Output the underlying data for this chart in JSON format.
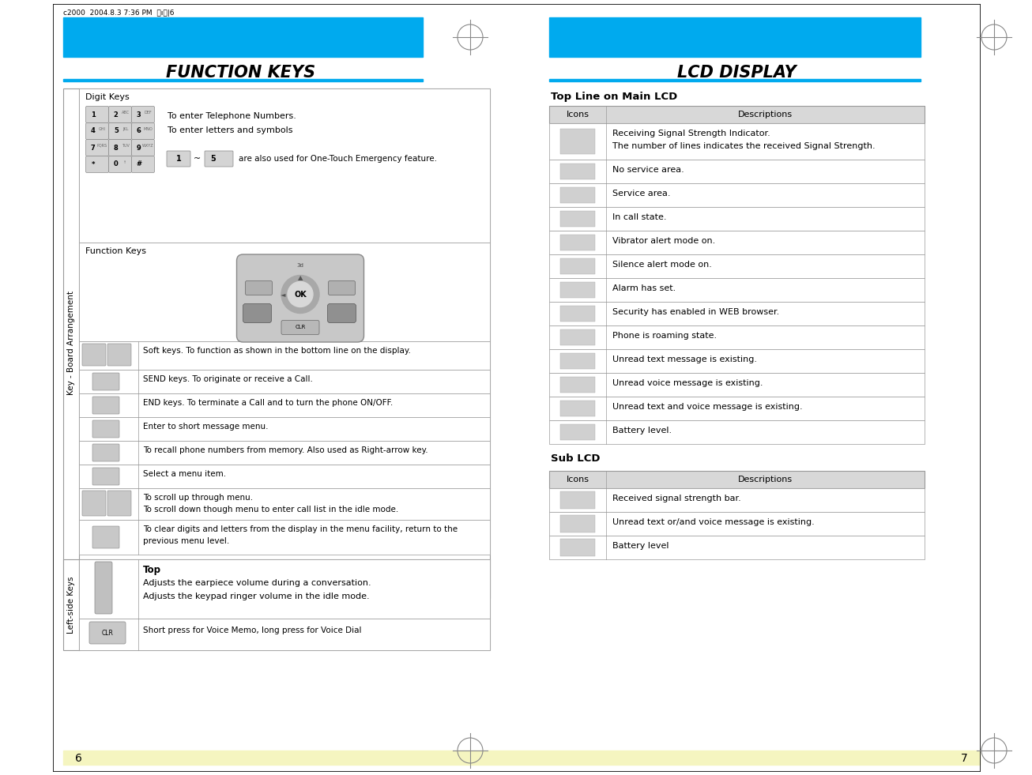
{
  "bg_color": "#ffffff",
  "cyan_color": "#00aaee",
  "title_left": "FUNCTION KEYS",
  "title_right": "LCD DISPLAY",
  "left_label": "Key - Board Arrangement",
  "left_label2": "Left-side Keys",
  "page_num_left": "6",
  "page_num_right": "7",
  "top_header_text": "c2000  2004.8.3 7:36 PM  ㅨıㅣ|6",
  "lcd_main_title": "Top Line on Main LCD",
  "lcd_sub_title": "Sub LCD",
  "lcd_main_rows": [
    {
      "text": "Receiving Signal Strength Indicator.\nThe number of lines indicates the received Signal Strength.",
      "tall": true
    },
    {
      "text": "No service area.",
      "tall": false
    },
    {
      "text": "Service area.",
      "tall": false
    },
    {
      "text": "In call state.",
      "tall": false
    },
    {
      "text": "Vibrator alert mode on.",
      "tall": false
    },
    {
      "text": "Silence alert mode on.",
      "tall": false
    },
    {
      "text": "Alarm has set.",
      "tall": false
    },
    {
      "text": "Security has enabled in WEB browser.",
      "tall": false
    },
    {
      "text": "Phone is roaming state.",
      "tall": false
    },
    {
      "text": "Unread text message is existing.",
      "tall": false
    },
    {
      "text": "Unread voice message is existing.",
      "tall": false
    },
    {
      "text": "Unread text and voice message is existing.",
      "tall": false
    },
    {
      "text": "Battery level.",
      "tall": false
    }
  ],
  "lcd_sub_rows": [
    {
      "text": "Received signal strength bar."
    },
    {
      "text": "Unread text or/and voice message is existing."
    },
    {
      "text": "Battery level"
    }
  ],
  "fk_rows": [
    {
      "text": "Soft keys. To function as shown in the bottom line on the display.",
      "two_icons": true,
      "tall": false
    },
    {
      "text": "SEND keys. To originate or receive a Call.",
      "two_icons": false,
      "tall": false
    },
    {
      "text": "END keys. To terminate a Call and to turn the phone ON/OFF.",
      "two_icons": false,
      "tall": false
    },
    {
      "text": "Enter to short message menu.",
      "two_icons": false,
      "tall": false
    },
    {
      "text": "To recall phone numbers from memory. Also used as Right-arrow key.",
      "two_icons": false,
      "tall": false
    },
    {
      "text": "Select a menu item.",
      "two_icons": false,
      "tall": false
    },
    {
      "text": "To scroll up through menu.\nTo scroll down though menu to enter call list in the idle mode.",
      "two_icons": true,
      "tall": true
    },
    {
      "text": "To clear digits and letters from the display in the menu facility, return to the\nprevious menu level.",
      "two_icons": false,
      "tall": true
    }
  ]
}
